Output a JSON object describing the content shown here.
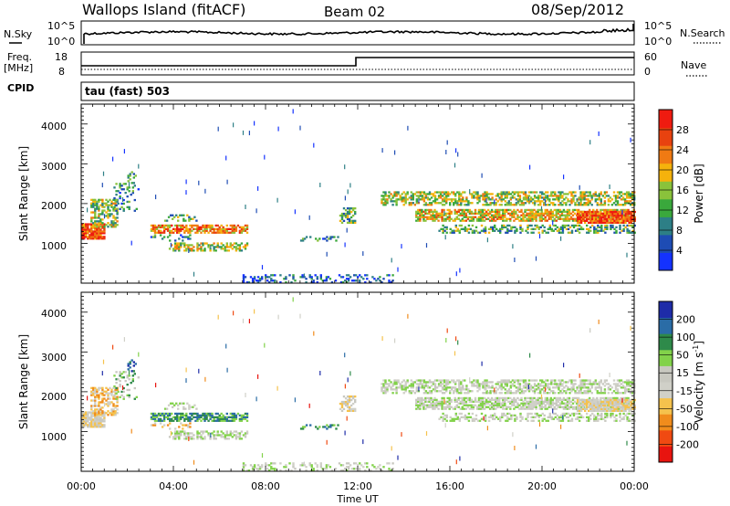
{
  "header": {
    "station": "Wallops Island (fitACF)",
    "beam": "Beam 02",
    "date": "08/Sep/2012"
  },
  "strip_noise": {
    "left_label": "N.Sky",
    "right_label": "N.Search",
    "left_ticks": [
      "10^5",
      "10^0"
    ],
    "right_ticks": [
      "10^5",
      "10^0"
    ]
  },
  "strip_freq": {
    "left_label_1": "Freq.",
    "left_label_2": "[MHz]",
    "left_ticks": [
      "18",
      "8"
    ],
    "right_ticks": [
      "60",
      "0"
    ],
    "right_label": "Nave"
  },
  "strip_cpid": {
    "label": "CPID",
    "value": "tau (fast) 503"
  },
  "colors": {
    "power_scale": [
      "#1432ff",
      "#1e4cb4",
      "#2d7f86",
      "#3aa83c",
      "#8ac23b",
      "#f5b20c",
      "#f07a13",
      "#e8420f",
      "#ef1b10"
    ],
    "velocity_scale": [
      "#e8140f",
      "#f04a12",
      "#f08c1c",
      "#f5c24d",
      "#d0d0c8",
      "#c8c8c0",
      "#82d24a",
      "#2e8a4a",
      "#2a6ca6",
      "#1e2ca8"
    ]
  },
  "chart_data": [
    {
      "type": "heatmap",
      "panel": "power",
      "ylabel": "Slant Range [km]",
      "yticks": [
        "1000",
        "2000",
        "3000",
        "4000"
      ],
      "ylim": [
        0,
        4500
      ],
      "xlim_hours": [
        0,
        24
      ],
      "colorbar_label": "Power [dB]",
      "colorbar_ticks": [
        "4",
        "8",
        "12",
        "16",
        "20",
        "24",
        "28"
      ],
      "colorbar_range": [
        0,
        32
      ]
    },
    {
      "type": "heatmap",
      "panel": "velocity",
      "ylabel": "Slant Range [km]",
      "yticks": [
        "1000",
        "2000",
        "3000",
        "4000"
      ],
      "ylim": [
        0,
        4500
      ],
      "xlim_hours": [
        0,
        24
      ],
      "colorbar_label": "Velocity [m s",
      "colorbar_label_sup": "-1",
      "colorbar_label_end": "]",
      "colorbar_ticks": [
        "200",
        "100",
        "50",
        "15",
        "-15",
        "-50",
        "-100",
        "-200"
      ],
      "xticks": [
        "00:00",
        "04:00",
        "08:00",
        "12:00",
        "16:00",
        "20:00",
        "00:00"
      ],
      "xlabel": "Time UT"
    }
  ]
}
